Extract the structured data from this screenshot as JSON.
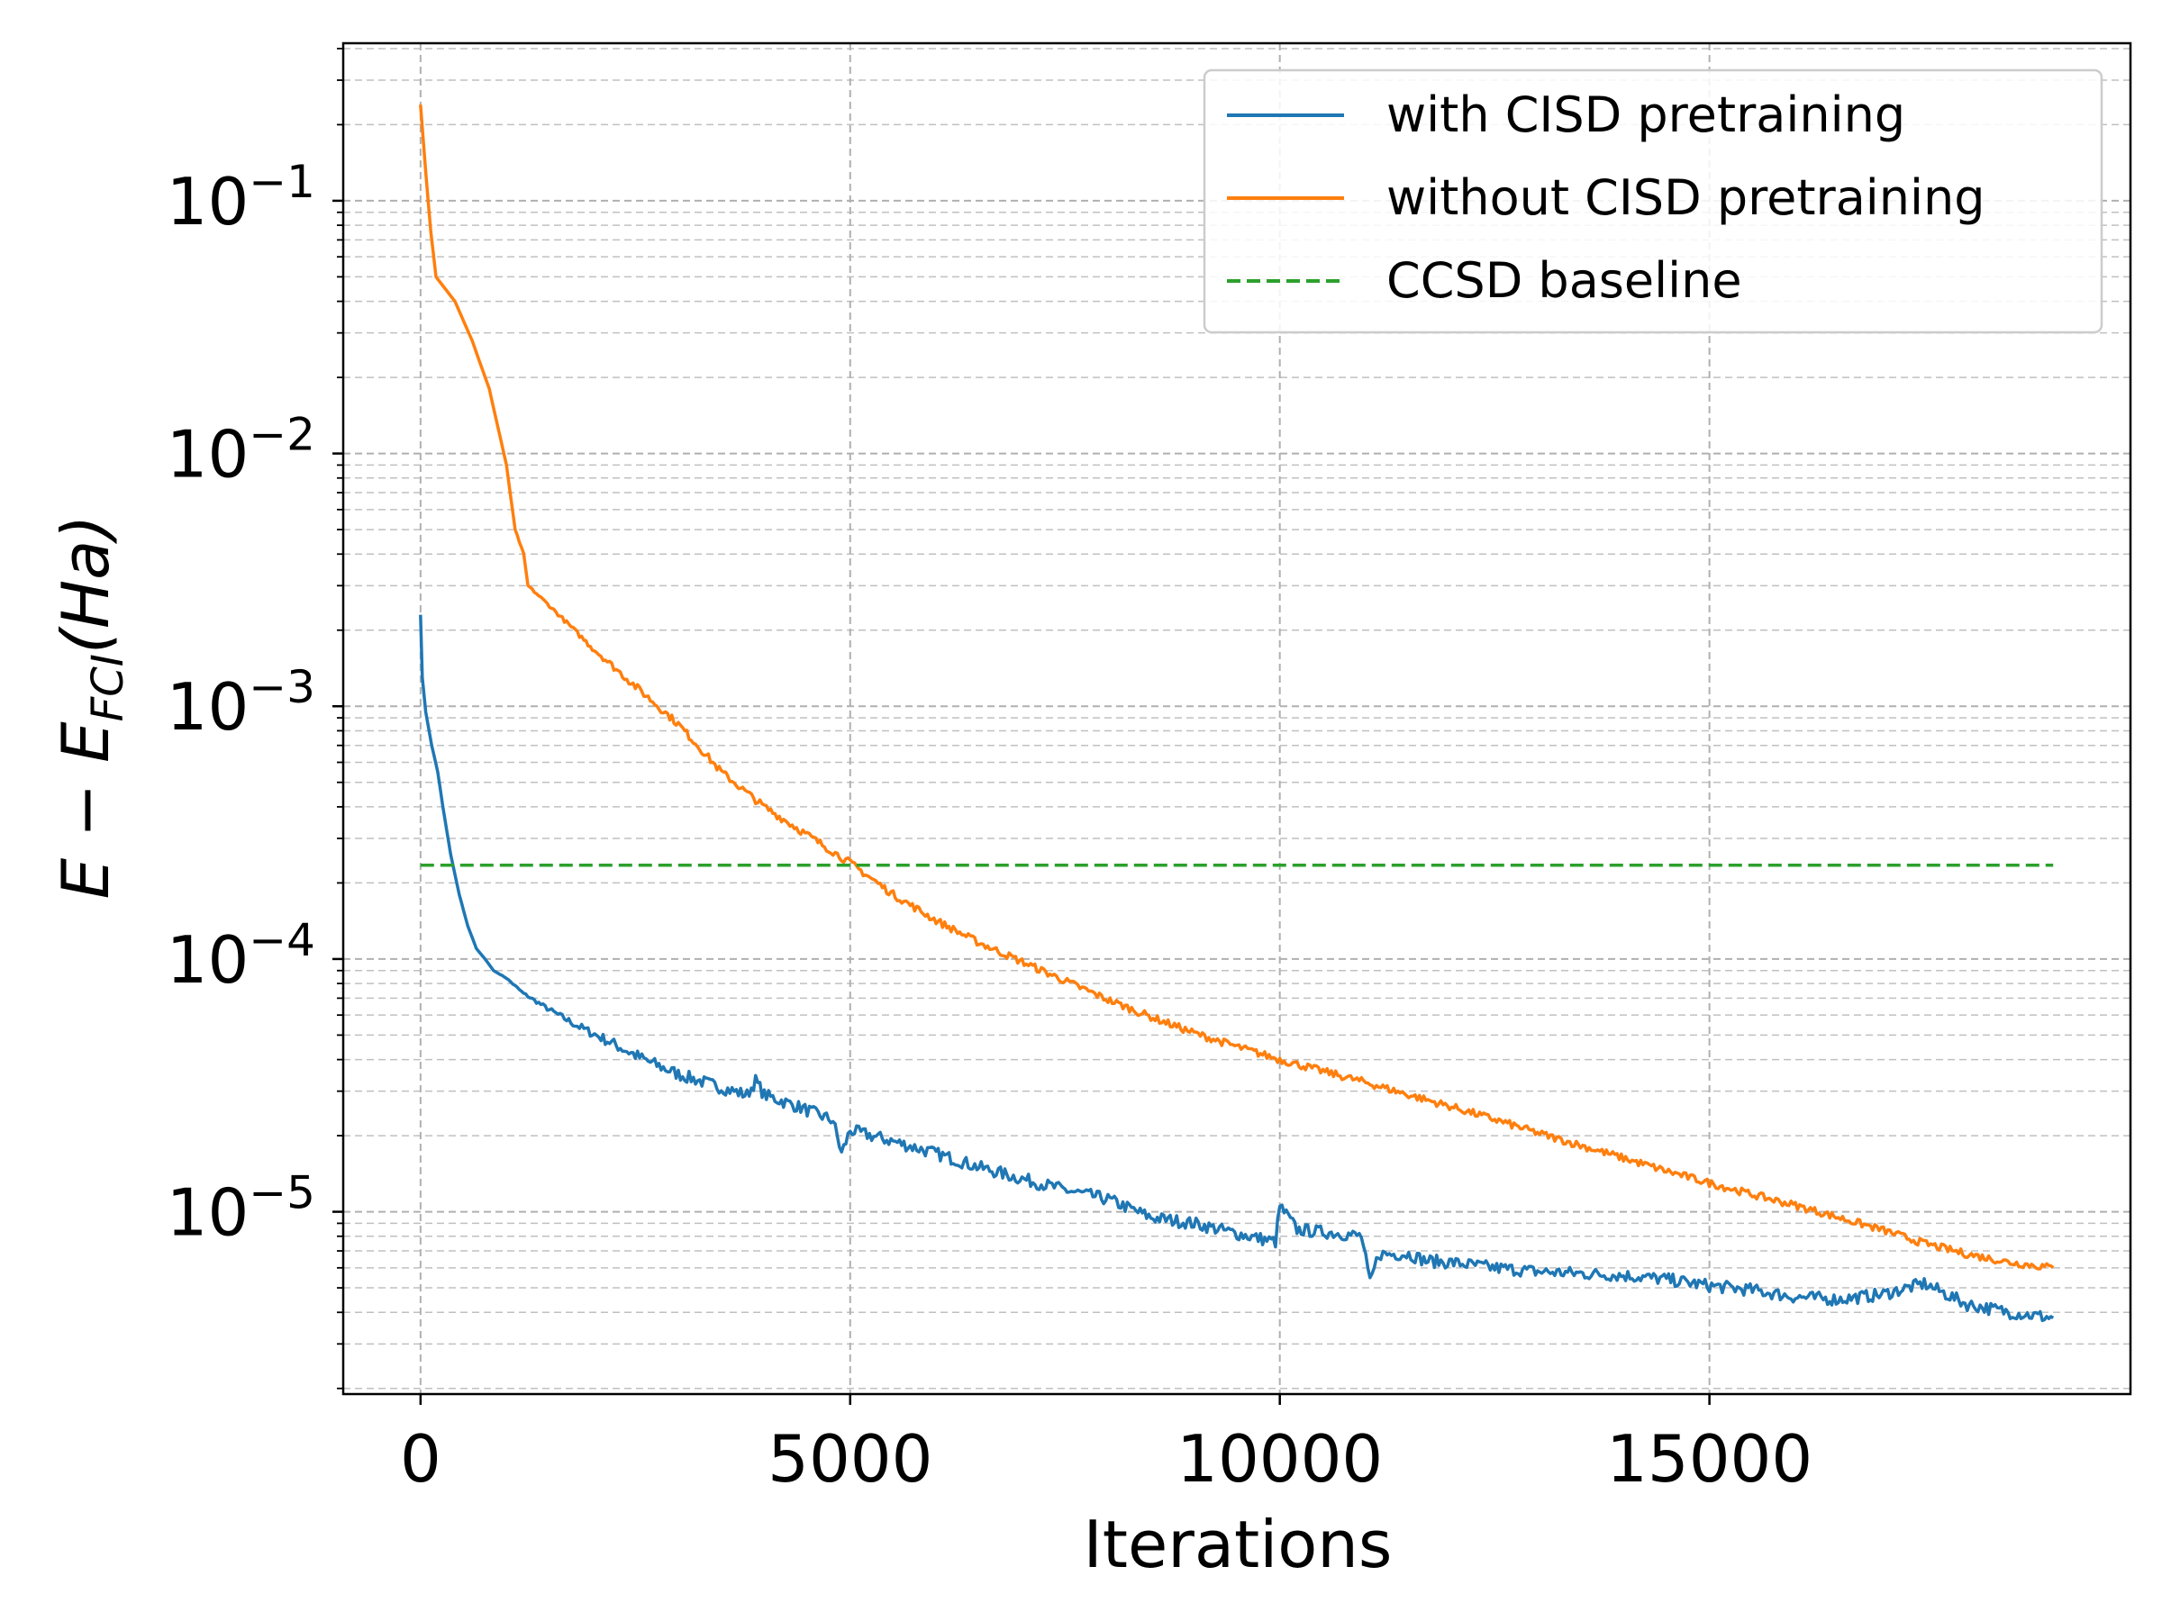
{
  "chart_data": {
    "type": "line",
    "title": "",
    "xlabel": "Iterations",
    "ylabel": "E − E_FCI(Ha)",
    "ylabel_parts": {
      "a": "E − E",
      "sub": "FCI",
      "b": "(Ha)"
    },
    "xlim": [
      -900,
      19900
    ],
    "ylim": [
      1.9e-06,
      0.42
    ],
    "yscale": "log",
    "grid": "on (major and minor, dashed)",
    "legend_position": "top-right",
    "x_ticks": [
      {
        "value": 0,
        "label": "0"
      },
      {
        "value": 5000,
        "label": "5000"
      },
      {
        "value": 10000,
        "label": "10000"
      },
      {
        "value": 15000,
        "label": "15000"
      }
    ],
    "y_ticks": [
      {
        "value": 0.1,
        "base": "10",
        "exp": "−1"
      },
      {
        "value": 0.01,
        "base": "10",
        "exp": "−2"
      },
      {
        "value": 0.001,
        "base": "10",
        "exp": "−3"
      },
      {
        "value": 0.0001,
        "base": "10",
        "exp": "−4"
      },
      {
        "value": 1e-05,
        "base": "10",
        "exp": "−5"
      }
    ],
    "series": [
      {
        "name": "with CISD pretraining",
        "color": "#1f77b4",
        "style": "solid",
        "noise": 0.05,
        "points": [
          [
            0,
            0.0023
          ],
          [
            20,
            0.0013
          ],
          [
            60,
            0.00095
          ],
          [
            130,
            0.0007
          ],
          [
            200,
            0.00055
          ],
          [
            260,
            0.0004
          ],
          [
            350,
            0.00026
          ],
          [
            450,
            0.00018
          ],
          [
            550,
            0.000135
          ],
          [
            650,
            0.00011
          ],
          [
            750,
            0.0001
          ],
          [
            850,
            9e-05
          ],
          [
            1000,
            8.4e-05
          ],
          [
            1200,
            7.3e-05
          ],
          [
            1500,
            6.3e-05
          ],
          [
            1800,
            5.5e-05
          ],
          [
            2200,
            4.7e-05
          ],
          [
            2600,
            4e-05
          ],
          [
            3000,
            3.5e-05
          ],
          [
            3500,
            3.1e-05
          ],
          [
            3800,
            2.9e-05
          ],
          [
            3900,
            3.3e-05
          ],
          [
            4000,
            2.9e-05
          ],
          [
            4400,
            2.6e-05
          ],
          [
            4800,
            2.3e-05
          ],
          [
            4900,
            1.7e-05
          ],
          [
            5000,
            2.1e-05
          ],
          [
            5500,
            1.9e-05
          ],
          [
            6000,
            1.7e-05
          ],
          [
            6500,
            1.5e-05
          ],
          [
            7000,
            1.35e-05
          ],
          [
            7500,
            1.22e-05
          ],
          [
            8000,
            1.12e-05
          ],
          [
            8500,
            9.5e-06
          ],
          [
            9000,
            9e-06
          ],
          [
            9500,
            8.2e-06
          ],
          [
            9950,
            7.6e-06
          ],
          [
            10000,
            1.05e-05
          ],
          [
            10100,
            9.5e-06
          ],
          [
            10200,
            8.5e-06
          ],
          [
            10700,
            8.2e-06
          ],
          [
            10950,
            8e-06
          ],
          [
            11050,
            5.2e-06
          ],
          [
            11150,
            6.8e-06
          ],
          [
            11500,
            6.8e-06
          ],
          [
            11700,
            6.4e-06
          ],
          [
            12000,
            6.3e-06
          ],
          [
            12500,
            6e-06
          ],
          [
            13000,
            5.8e-06
          ],
          [
            13500,
            5.7e-06
          ],
          [
            14000,
            5.6e-06
          ],
          [
            14500,
            5.4e-06
          ],
          [
            15000,
            5.1e-06
          ],
          [
            15500,
            4.9e-06
          ],
          [
            16000,
            4.6e-06
          ],
          [
            16500,
            4.5e-06
          ],
          [
            17000,
            4.7e-06
          ],
          [
            17500,
            5.2e-06
          ],
          [
            18000,
            4.3e-06
          ],
          [
            18500,
            4e-06
          ],
          [
            19000,
            3.8e-06
          ]
        ]
      },
      {
        "name": "without CISD pretraining",
        "color": "#ff7f0e",
        "style": "solid",
        "noise": 0.03,
        "points": [
          [
            0,
            0.24
          ],
          [
            60,
            0.13
          ],
          [
            120,
            0.075
          ],
          [
            180,
            0.05
          ],
          [
            400,
            0.04
          ],
          [
            600,
            0.028
          ],
          [
            800,
            0.018
          ],
          [
            1000,
            0.009
          ],
          [
            1100,
            0.005
          ],
          [
            1200,
            0.004
          ],
          [
            1250,
            0.003
          ],
          [
            1500,
            0.0025
          ],
          [
            2000,
            0.0017
          ],
          [
            2500,
            0.0012
          ],
          [
            3000,
            0.00085
          ],
          [
            3500,
            0.00055
          ],
          [
            4000,
            0.0004
          ],
          [
            4500,
            0.00031
          ],
          [
            5000,
            0.00024
          ],
          [
            5500,
            0.00018
          ],
          [
            6000,
            0.000142
          ],
          [
            6500,
            0.000116
          ],
          [
            7000,
            9.75e-05
          ],
          [
            7500,
            8.2e-05
          ],
          [
            8000,
            6.9e-05
          ],
          [
            8500,
            5.9e-05
          ],
          [
            9000,
            5.1e-05
          ],
          [
            9500,
            4.5e-05
          ],
          [
            10000,
            4e-05
          ],
          [
            10500,
            3.6e-05
          ],
          [
            11000,
            3.25e-05
          ],
          [
            11500,
            2.9e-05
          ],
          [
            12000,
            2.6e-05
          ],
          [
            12500,
            2.32e-05
          ],
          [
            13000,
            2.05e-05
          ],
          [
            13500,
            1.83e-05
          ],
          [
            14000,
            1.63e-05
          ],
          [
            14500,
            1.45e-05
          ],
          [
            15000,
            1.3e-05
          ],
          [
            15500,
            1.17e-05
          ],
          [
            16000,
            1.06e-05
          ],
          [
            16500,
            9.5e-06
          ],
          [
            17000,
            8.5e-06
          ],
          [
            17500,
            7.5e-06
          ],
          [
            18000,
            6.8e-06
          ],
          [
            18500,
            6.3e-06
          ],
          [
            19000,
            6e-06
          ]
        ]
      },
      {
        "name": "CCSD baseline",
        "color": "#2ca02c",
        "style": "dashed",
        "noise": 0,
        "points": [
          [
            0,
            0.000235
          ],
          [
            19000,
            0.000235
          ]
        ]
      }
    ]
  }
}
